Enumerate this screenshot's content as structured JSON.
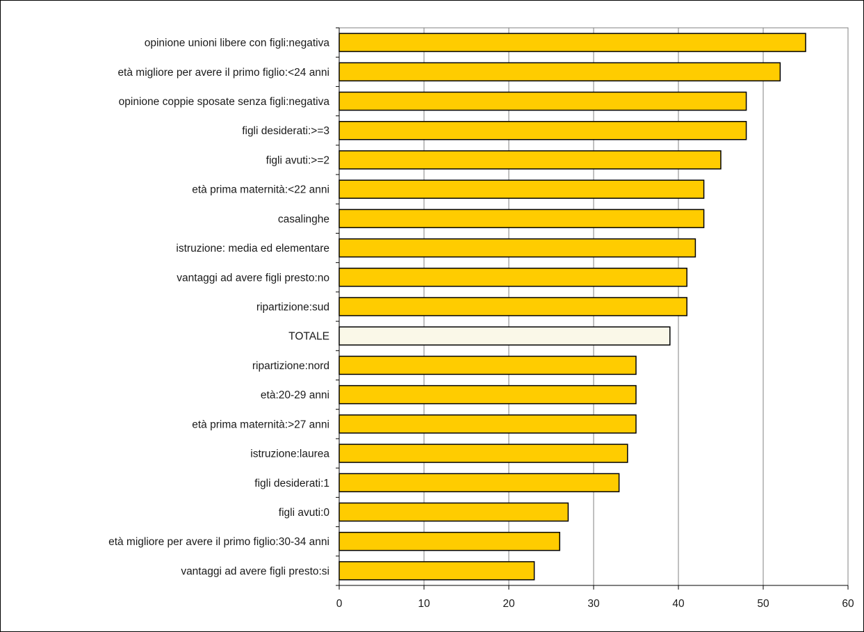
{
  "chart_data": {
    "type": "bar",
    "orientation": "horizontal",
    "categories": [
      "opinione unioni libere con figli:negativa",
      "età migliore per avere il primo figlio:<24 anni",
      "opinione coppie sposate senza figli:negativa",
      "figli desiderati:>=3",
      "figli avuti:>=2",
      "età prima maternità:<22 anni",
      "casalinghe",
      "istruzione: media ed elementare",
      "vantaggi ad avere figli presto:no",
      "ripartizione:sud",
      "TOTALE",
      "ripartizione:nord",
      "età:20-29 anni",
      "età prima maternità:>27 anni",
      "istruzione:laurea",
      "figli desiderati:1",
      "figli avuti:0",
      "età migliore per avere il primo figlio:30-34 anni",
      "vantaggi ad avere figli presto:si"
    ],
    "values": [
      55,
      52,
      48,
      48,
      45,
      43,
      43,
      42,
      41,
      41,
      39,
      35,
      35,
      35,
      34,
      33,
      27,
      26,
      23
    ],
    "highlight_category": "TOTALE",
    "title": "",
    "xlabel": "",
    "ylabel": "",
    "xlim": [
      0,
      60
    ],
    "xticks": [
      0,
      10,
      20,
      30,
      40,
      50,
      60
    ],
    "grid": "vertical",
    "legend": "none",
    "colors": {
      "bar": "#FFCC00",
      "highlight_bar": "#FAF8E8",
      "bar_stroke": "#000000",
      "gridline": "#808080",
      "axis": "#000000",
      "frame": "#000000"
    }
  }
}
